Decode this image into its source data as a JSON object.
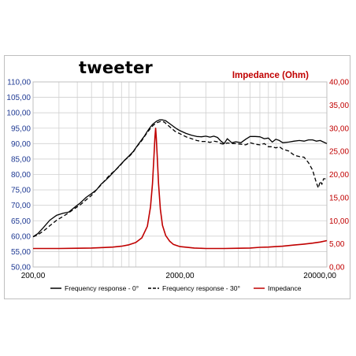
{
  "chart_data": {
    "type": "line",
    "title": "tweeter",
    "y2label": "Impedance (Ohm)",
    "x_scale": "log",
    "xlim": [
      200,
      20000
    ],
    "x_ticks": [
      "200,00",
      "2000,00",
      "20000,00"
    ],
    "ylim": [
      50,
      110
    ],
    "y_ticks": [
      "50,00",
      "55,00",
      "60,00",
      "65,00",
      "70,00",
      "75,00",
      "80,00",
      "85,00",
      "90,00",
      "95,00",
      "100,00",
      "105,00",
      "110,00"
    ],
    "y2lim": [
      0,
      40
    ],
    "y2_ticks": [
      "0,00",
      "5,00",
      "10,00",
      "15,00",
      "20,00",
      "25,00",
      "30,00",
      "35,00",
      "40,00"
    ],
    "grid": true,
    "legend_position": "bottom",
    "series": [
      {
        "name": "Frequency response - 0°",
        "axis": "left",
        "color": "#000000",
        "dash": "solid",
        "points": [
          [
            200,
            59.8
          ],
          [
            215,
            60.8
          ],
          [
            235,
            62.8
          ],
          [
            260,
            65.2
          ],
          [
            290,
            66.8
          ],
          [
            320,
            67.4
          ],
          [
            350,
            67.8
          ],
          [
            380,
            69.2
          ],
          [
            420,
            70.8
          ],
          [
            460,
            72.6
          ],
          [
            500,
            73.8
          ],
          [
            540,
            75.0
          ],
          [
            580,
            76.8
          ],
          [
            620,
            78.0
          ],
          [
            670,
            79.6
          ],
          [
            720,
            81.2
          ],
          [
            780,
            83.0
          ],
          [
            840,
            84.6
          ],
          [
            900,
            86.0
          ],
          [
            960,
            87.4
          ],
          [
            1000,
            88.6
          ],
          [
            1050,
            90.0
          ],
          [
            1100,
            91.3
          ],
          [
            1150,
            92.6
          ],
          [
            1200,
            94.0
          ],
          [
            1250,
            95.2
          ],
          [
            1300,
            96.2
          ],
          [
            1380,
            97.2
          ],
          [
            1450,
            97.7
          ],
          [
            1520,
            97.7
          ],
          [
            1600,
            97.4
          ],
          [
            1700,
            96.5
          ],
          [
            1800,
            95.6
          ],
          [
            1900,
            94.8
          ],
          [
            2000,
            94.2
          ],
          [
            2200,
            93.3
          ],
          [
            2400,
            92.7
          ],
          [
            2600,
            92.3
          ],
          [
            2800,
            92.2
          ],
          [
            3000,
            92.4
          ],
          [
            3200,
            92.1
          ],
          [
            3400,
            92.4
          ],
          [
            3600,
            92.0
          ],
          [
            3800,
            90.8
          ],
          [
            4000,
            90.0
          ],
          [
            4200,
            91.6
          ],
          [
            4500,
            90.3
          ],
          [
            4800,
            90.6
          ],
          [
            5200,
            90.3
          ],
          [
            5600,
            91.4
          ],
          [
            6000,
            92.3
          ],
          [
            6500,
            92.3
          ],
          [
            7000,
            92.2
          ],
          [
            7500,
            91.6
          ],
          [
            8000,
            91.8
          ],
          [
            8500,
            90.5
          ],
          [
            9000,
            91.4
          ],
          [
            9500,
            91.0
          ],
          [
            10000,
            90.3
          ],
          [
            11000,
            90.5
          ],
          [
            12000,
            90.8
          ],
          [
            13000,
            91.0
          ],
          [
            14000,
            90.8
          ],
          [
            15000,
            91.2
          ],
          [
            16000,
            91.2
          ],
          [
            17000,
            90.8
          ],
          [
            18000,
            91.0
          ],
          [
            19000,
            90.5
          ],
          [
            20000,
            90.0
          ]
        ]
      },
      {
        "name": "Frequency response - 30°",
        "axis": "left",
        "color": "#000000",
        "dash": "dashed",
        "points": [
          [
            200,
            59.8
          ],
          [
            215,
            60.4
          ],
          [
            240,
            62.0
          ],
          [
            260,
            63.4
          ],
          [
            290,
            65.2
          ],
          [
            320,
            66.4
          ],
          [
            350,
            67.6
          ],
          [
            380,
            68.8
          ],
          [
            420,
            70.2
          ],
          [
            460,
            71.8
          ],
          [
            500,
            73.2
          ],
          [
            540,
            75.0
          ],
          [
            580,
            76.6
          ],
          [
            620,
            78.2
          ],
          [
            670,
            80.0
          ],
          [
            720,
            81.2
          ],
          [
            780,
            82.8
          ],
          [
            840,
            84.6
          ],
          [
            900,
            85.8
          ],
          [
            960,
            87.2
          ],
          [
            1000,
            88.6
          ],
          [
            1050,
            89.8
          ],
          [
            1100,
            91.0
          ],
          [
            1150,
            92.4
          ],
          [
            1200,
            93.6
          ],
          [
            1260,
            95.0
          ],
          [
            1320,
            96.0
          ],
          [
            1400,
            96.8
          ],
          [
            1480,
            97.2
          ],
          [
            1560,
            97.0
          ],
          [
            1650,
            96.0
          ],
          [
            1750,
            95.0
          ],
          [
            1850,
            94.0
          ],
          [
            2000,
            93.2
          ],
          [
            2200,
            92.2
          ],
          [
            2400,
            91.6
          ],
          [
            2600,
            91.0
          ],
          [
            2800,
            90.7
          ],
          [
            3000,
            90.7
          ],
          [
            3200,
            90.4
          ],
          [
            3400,
            90.8
          ],
          [
            3600,
            90.6
          ],
          [
            3800,
            90.0
          ],
          [
            4000,
            89.8
          ],
          [
            4200,
            90.2
          ],
          [
            4500,
            90.0
          ],
          [
            4800,
            90.0
          ],
          [
            5200,
            89.8
          ],
          [
            5600,
            89.6
          ],
          [
            6000,
            90.3
          ],
          [
            6500,
            89.8
          ],
          [
            7000,
            89.6
          ],
          [
            7500,
            90.0
          ],
          [
            8000,
            89.0
          ],
          [
            8500,
            89.0
          ],
          [
            9000,
            88.6
          ],
          [
            9500,
            89.0
          ],
          [
            10000,
            88.2
          ],
          [
            11000,
            87.6
          ],
          [
            12000,
            86.2
          ],
          [
            13000,
            85.8
          ],
          [
            14000,
            85.6
          ],
          [
            15000,
            83.8
          ],
          [
            16000,
            81.4
          ],
          [
            17000,
            77.2
          ],
          [
            17500,
            75.6
          ],
          [
            18000,
            77.8
          ],
          [
            18500,
            76.8
          ],
          [
            19000,
            78.6
          ],
          [
            20000,
            78.6
          ]
        ]
      },
      {
        "name": "Impedance",
        "axis": "right",
        "color": "#c00000",
        "dash": "solid",
        "points": [
          [
            200,
            4.0
          ],
          [
            300,
            4.0
          ],
          [
            400,
            4.05
          ],
          [
            500,
            4.1
          ],
          [
            600,
            4.2
          ],
          [
            700,
            4.3
          ],
          [
            800,
            4.5
          ],
          [
            900,
            4.8
          ],
          [
            1000,
            5.3
          ],
          [
            1100,
            6.3
          ],
          [
            1200,
            8.8
          ],
          [
            1260,
            13.0
          ],
          [
            1300,
            18.0
          ],
          [
            1330,
            24.0
          ],
          [
            1350,
            28.0
          ],
          [
            1365,
            30.0
          ],
          [
            1380,
            28.0
          ],
          [
            1400,
            24.0
          ],
          [
            1430,
            18.0
          ],
          [
            1470,
            12.5
          ],
          [
            1520,
            9.0
          ],
          [
            1600,
            6.8
          ],
          [
            1700,
            5.6
          ],
          [
            1800,
            4.9
          ],
          [
            2000,
            4.4
          ],
          [
            2500,
            4.1
          ],
          [
            3000,
            4.0
          ],
          [
            4000,
            4.0
          ],
          [
            5000,
            4.05
          ],
          [
            6000,
            4.1
          ],
          [
            7000,
            4.25
          ],
          [
            8000,
            4.3
          ],
          [
            9000,
            4.4
          ],
          [
            10000,
            4.5
          ],
          [
            12000,
            4.75
          ],
          [
            14000,
            4.95
          ],
          [
            16000,
            5.15
          ],
          [
            18000,
            5.4
          ],
          [
            20000,
            5.7
          ]
        ]
      }
    ]
  }
}
